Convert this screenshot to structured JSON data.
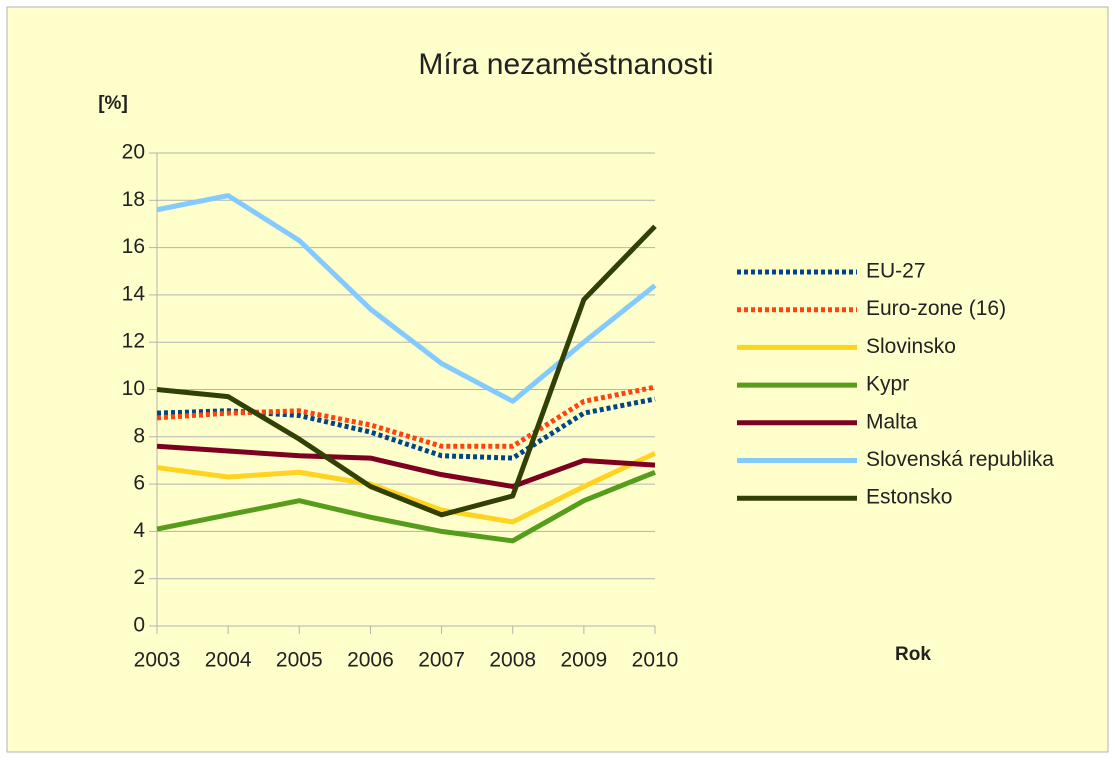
{
  "chart_data": {
    "type": "line",
    "title": "Míra nezaměstnanosti",
    "y_label": "[%]",
    "x_label": "Rok",
    "categories": [
      "2003",
      "2004",
      "2005",
      "2006",
      "2007",
      "2008",
      "2009",
      "2010"
    ],
    "ylim": [
      0,
      20
    ],
    "yticks": [
      0,
      2,
      4,
      6,
      8,
      10,
      12,
      14,
      16,
      18,
      20
    ],
    "grid": true,
    "legend": "right",
    "series": [
      {
        "name": "EU-27",
        "color": "#004586",
        "dotted": true,
        "values": [
          9.0,
          9.1,
          8.9,
          8.2,
          7.2,
          7.1,
          9.0,
          9.6
        ]
      },
      {
        "name": "Euro-zone (16)",
        "color": "#ff420e",
        "dotted": true,
        "values": [
          8.8,
          9.0,
          9.1,
          8.5,
          7.6,
          7.6,
          9.5,
          10.1
        ]
      },
      {
        "name": "Slovinsko",
        "color": "#ffd320",
        "dotted": false,
        "values": [
          6.7,
          6.3,
          6.5,
          6.0,
          4.9,
          4.4,
          5.9,
          7.3
        ]
      },
      {
        "name": "Kypr",
        "color": "#579d1c",
        "dotted": false,
        "values": [
          4.1,
          4.7,
          5.3,
          4.6,
          4.0,
          3.6,
          5.3,
          6.5
        ]
      },
      {
        "name": "Malta",
        "color": "#7e0021",
        "dotted": false,
        "values": [
          7.6,
          7.4,
          7.2,
          7.1,
          6.4,
          5.9,
          7.0,
          6.8
        ]
      },
      {
        "name": "Slovenská republika",
        "color": "#83caff",
        "dotted": false,
        "values": [
          17.6,
          18.2,
          16.3,
          13.4,
          11.1,
          9.5,
          12.0,
          14.4
        ]
      },
      {
        "name": "Estonsko",
        "color": "#314004",
        "dotted": false,
        "values": [
          10.0,
          9.7,
          7.9,
          5.9,
          4.7,
          5.5,
          13.8,
          16.9
        ]
      }
    ]
  }
}
